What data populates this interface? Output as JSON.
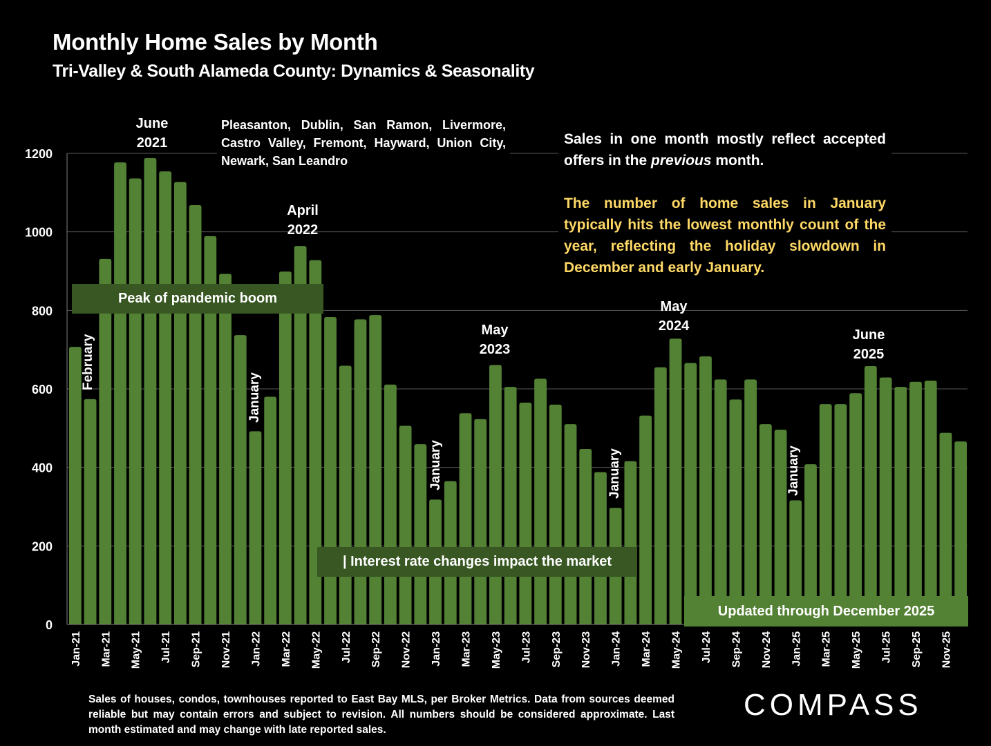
{
  "header": {
    "title": "Monthly Home Sales by Month",
    "subtitle": "Tri-Valley & South Alameda County: Dynamics & Seasonality"
  },
  "cities_note": "Pleasanton, Dublin, San Ramon, Livermore, Castro Valley, Fremont, Hayward, Union City, Newark, San Leandro",
  "side_note": {
    "line1_before": "Sales in one month mostly reflect accepted offers in the ",
    "line1_italic": "previous",
    "line1_after": " month.",
    "highlight": "The number of home sales in January typically hits the lowest monthly count of the year, reflecting the holiday slowdown in December and early January."
  },
  "boxes": {
    "peak": "Peak of pandemic boom",
    "rates": "| Interest rate changes impact the market",
    "updated": "Updated through December 2025"
  },
  "annotations": {
    "june2021": [
      "June",
      "2021"
    ],
    "april2022": [
      "April",
      "2022"
    ],
    "may2023": [
      "May",
      "2023"
    ],
    "may2024": [
      "May",
      "2024"
    ],
    "june2025": [
      "June",
      "2025"
    ],
    "february": "February",
    "january": "January"
  },
  "footer": "Sales of houses, condos, townhouses reported to East Bay MLS, per Broker Metrics. Data from sources deemed reliable but may contain errors and subject to revision. All numbers should be considered approximate.  Last month estimated and may change with late reported sales.",
  "logo": "COMPASS",
  "colors": {
    "bar": "#548235",
    "dark_box": "#385723",
    "highlight_text": "#FFD966",
    "gridline": "#595959"
  },
  "chart_data": {
    "type": "bar",
    "title": "Monthly Home Sales by Month",
    "subtitle": "Tri-Valley & South Alameda County: Dynamics & Seasonality",
    "xlabel": "",
    "ylabel": "",
    "ylim": [
      0,
      1200
    ],
    "yticks": [
      0,
      200,
      400,
      600,
      800,
      1000,
      1200
    ],
    "grid": true,
    "legend": "none",
    "categories": [
      "Jan-21",
      "Feb-21",
      "Mar-21",
      "Apr-21",
      "May-21",
      "Jun-21",
      "Jul-21",
      "Aug-21",
      "Sep-21",
      "Oct-21",
      "Nov-21",
      "Dec-21",
      "Jan-22",
      "Feb-22",
      "Mar-22",
      "Apr-22",
      "May-22",
      "Jun-22",
      "Jul-22",
      "Aug-22",
      "Sep-22",
      "Oct-22",
      "Nov-22",
      "Dec-22",
      "Jan-23",
      "Feb-23",
      "Mar-23",
      "Apr-23",
      "May-23",
      "Jun-23",
      "Jul-23",
      "Aug-23",
      "Sep-23",
      "Oct-23",
      "Nov-23",
      "Dec-23",
      "Jan-24",
      "Feb-24",
      "Mar-24",
      "Apr-24",
      "May-24",
      "Jun-24",
      "Jul-24",
      "Aug-24",
      "Sep-24",
      "Oct-24",
      "Nov-24",
      "Dec-24",
      "Jan-25",
      "Feb-25",
      "Mar-25",
      "Apr-25",
      "May-25",
      "Jun-25",
      "Jul-25",
      "Aug-25",
      "Sep-25",
      "Oct-25",
      "Nov-25",
      "Dec-25"
    ],
    "values": [
      707,
      574,
      931,
      1177,
      1136,
      1188,
      1154,
      1127,
      1068,
      989,
      893,
      737,
      492,
      580,
      899,
      964,
      928,
      783,
      659,
      777,
      788,
      611,
      506,
      459,
      318,
      365,
      538,
      523,
      661,
      605,
      565,
      626,
      560,
      510,
      447,
      388,
      297,
      416,
      532,
      655,
      728,
      666,
      683,
      624,
      573,
      624,
      510,
      496,
      316,
      408,
      561,
      561,
      589,
      658,
      629,
      605,
      618,
      621,
      488,
      466
    ],
    "tick_every": 2,
    "annotations": [
      {
        "category": "Jun-21",
        "text": "June 2021"
      },
      {
        "category": "Feb-21",
        "text": "February"
      },
      {
        "category": "Jan-22",
        "text": "January"
      },
      {
        "category": "Apr-22",
        "text": "April 2022"
      },
      {
        "category": "Jan-23",
        "text": "January"
      },
      {
        "category": "May-23",
        "text": "May 2023"
      },
      {
        "category": "Jan-24",
        "text": "January"
      },
      {
        "category": "May-24",
        "text": "May 2024"
      },
      {
        "category": "Jan-25",
        "text": "January"
      },
      {
        "category": "Jun-25",
        "text": "June 2025"
      }
    ]
  }
}
